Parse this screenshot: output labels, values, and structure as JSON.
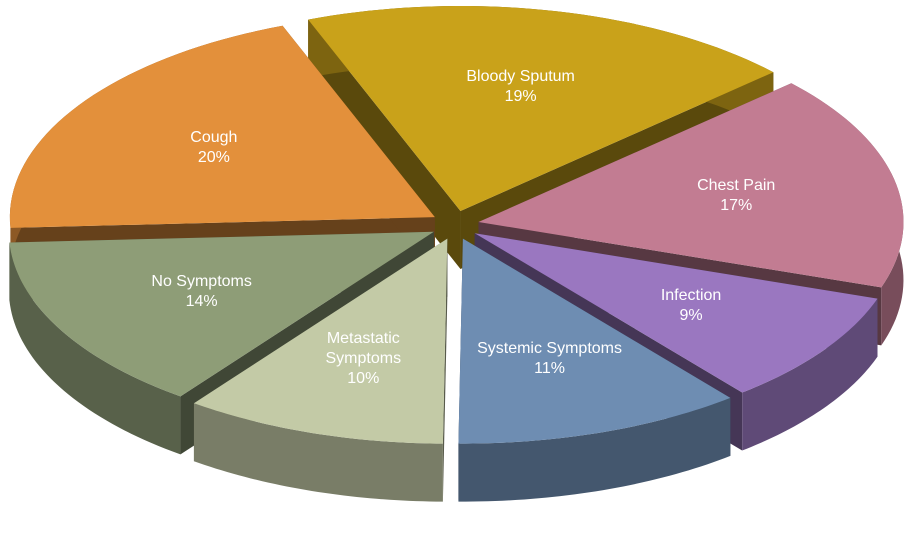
{
  "chart_data": {
    "type": "pie3d",
    "categories": [
      "Bloody Sputum",
      "Chest Pain",
      "Infection",
      "Systemic Symptoms",
      "Metastatic Symptoms",
      "No Symptoms",
      "Cough"
    ],
    "values": [
      19,
      17,
      9,
      11,
      10,
      14,
      20
    ],
    "value_labels": [
      "19%",
      "17%",
      "9%",
      "11%",
      "10%",
      "14%",
      "20%"
    ],
    "colors": [
      "#c9a21a",
      "#c27c92",
      "#9a77c0",
      "#6e8db2",
      "#c3caa6",
      "#8e9d77",
      "#e3903b"
    ],
    "exploded": true
  }
}
